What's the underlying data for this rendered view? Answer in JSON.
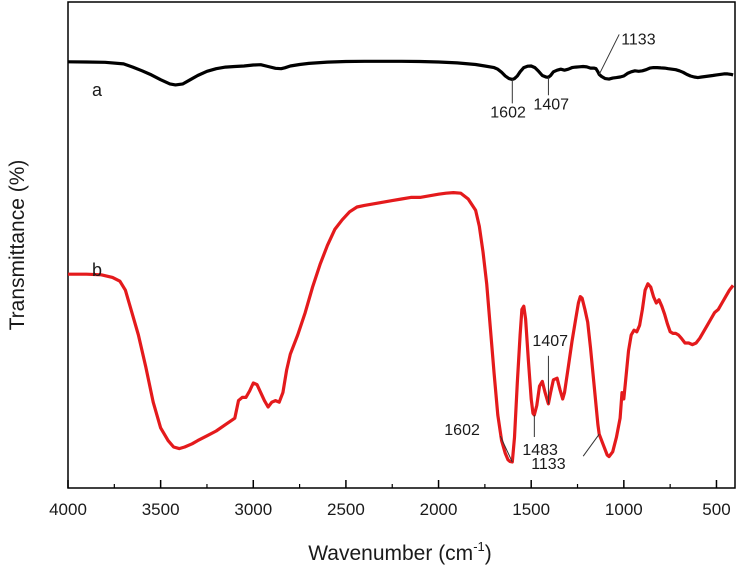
{
  "chart_data": {
    "type": "line",
    "xlabel": "Wavenumber (cm",
    "xlabel_sup": "-1",
    "xlabel_end": ")",
    "ylabel": "Transmittance (%)",
    "xlim": [
      4000,
      400
    ],
    "x_reversed": true,
    "x_ticks": [
      4000,
      3500,
      3000,
      2500,
      2000,
      1500,
      1000,
      500
    ],
    "y_ticks_labeled": false,
    "ylim": [
      0,
      100
    ],
    "grid": false,
    "series": [
      {
        "name": "a",
        "color": "#000000",
        "points": [
          [
            4000,
            93.5
          ],
          [
            3900,
            93.3
          ],
          [
            3800,
            93.0
          ],
          [
            3700,
            91.5
          ],
          [
            3650,
            88.5
          ],
          [
            3600,
            85.0
          ],
          [
            3550,
            81.0
          ],
          [
            3500,
            76.5
          ],
          [
            3450,
            72.5
          ],
          [
            3420,
            71.5
          ],
          [
            3380,
            72.5
          ],
          [
            3340,
            76.5
          ],
          [
            3300,
            80.5
          ],
          [
            3250,
            84.5
          ],
          [
            3200,
            87.0
          ],
          [
            3150,
            88.5
          ],
          [
            3100,
            89.0
          ],
          [
            3050,
            89.5
          ],
          [
            3000,
            90.5
          ],
          [
            2960,
            90.8
          ],
          [
            2920,
            89.0
          ],
          [
            2880,
            87.3
          ],
          [
            2850,
            87.0
          ],
          [
            2830,
            87.8
          ],
          [
            2800,
            89.5
          ],
          [
            2750,
            91.0
          ],
          [
            2700,
            92.0
          ],
          [
            2600,
            93.2
          ],
          [
            2500,
            93.8
          ],
          [
            2400,
            94.0
          ],
          [
            2300,
            94.0
          ],
          [
            2200,
            94.0
          ],
          [
            2100,
            93.8
          ],
          [
            2000,
            93.3
          ],
          [
            1900,
            92.5
          ],
          [
            1800,
            91.0
          ],
          [
            1750,
            89.5
          ],
          [
            1700,
            88.0
          ],
          [
            1680,
            86.5
          ],
          [
            1660,
            83.5
          ],
          [
            1640,
            80.0
          ],
          [
            1620,
            77.5
          ],
          [
            1602,
            76.8
          ],
          [
            1590,
            77.5
          ],
          [
            1575,
            80.0
          ],
          [
            1560,
            84.0
          ],
          [
            1540,
            88.0
          ],
          [
            1520,
            89.3
          ],
          [
            1500,
            89.5
          ],
          [
            1480,
            88.0
          ],
          [
            1460,
            84.5
          ],
          [
            1440,
            80.5
          ],
          [
            1420,
            79.0
          ],
          [
            1407,
            78.8
          ],
          [
            1395,
            80.5
          ],
          [
            1380,
            84.0
          ],
          [
            1360,
            85.5
          ],
          [
            1340,
            86.5
          ],
          [
            1320,
            85.5
          ],
          [
            1300,
            86.5
          ],
          [
            1280,
            88.0
          ],
          [
            1260,
            88.5
          ],
          [
            1240,
            88.8
          ],
          [
            1220,
            89.0
          ],
          [
            1200,
            88.7
          ],
          [
            1180,
            87.5
          ],
          [
            1160,
            87.5
          ],
          [
            1150,
            87.0
          ],
          [
            1140,
            84.0
          ],
          [
            1133,
            81.5
          ],
          [
            1120,
            79.5
          ],
          [
            1100,
            77.5
          ],
          [
            1080,
            77.0
          ],
          [
            1060,
            78.0
          ],
          [
            1040,
            78.5
          ],
          [
            1020,
            79.0
          ],
          [
            1000,
            80.0
          ],
          [
            980,
            82.5
          ],
          [
            960,
            84.0
          ],
          [
            940,
            85.0
          ],
          [
            920,
            84.5
          ],
          [
            900,
            85.0
          ],
          [
            880,
            86.0
          ],
          [
            860,
            87.5
          ],
          [
            840,
            88.0
          ],
          [
            820,
            88.0
          ],
          [
            800,
            87.7
          ],
          [
            780,
            87.5
          ],
          [
            760,
            87.0
          ],
          [
            740,
            86.5
          ],
          [
            720,
            86.0
          ],
          [
            700,
            85.0
          ],
          [
            680,
            83.5
          ],
          [
            660,
            81.5
          ],
          [
            640,
            80.0
          ],
          [
            620,
            79.0
          ],
          [
            600,
            78.5
          ],
          [
            580,
            79.0
          ],
          [
            560,
            79.5
          ],
          [
            540,
            80.0
          ],
          [
            520,
            80.5
          ],
          [
            500,
            81.0
          ],
          [
            480,
            81.5
          ],
          [
            460,
            82.0
          ],
          [
            440,
            82.0
          ],
          [
            420,
            81.5
          ],
          [
            410,
            81.0
          ]
        ]
      },
      {
        "name": "b",
        "color": "#e41a1c",
        "points": [
          [
            4000,
            59.0
          ],
          [
            3900,
            59.0
          ],
          [
            3820,
            58.8
          ],
          [
            3760,
            58.0
          ],
          [
            3720,
            56.8
          ],
          [
            3690,
            54.0
          ],
          [
            3660,
            48.0
          ],
          [
            3620,
            40.0
          ],
          [
            3580,
            30.0
          ],
          [
            3540,
            19.0
          ],
          [
            3500,
            11.0
          ],
          [
            3460,
            7.0
          ],
          [
            3430,
            5.0
          ],
          [
            3400,
            4.5
          ],
          [
            3370,
            5.0
          ],
          [
            3330,
            6.0
          ],
          [
            3300,
            7.0
          ],
          [
            3250,
            8.5
          ],
          [
            3200,
            10.0
          ],
          [
            3150,
            12.0
          ],
          [
            3100,
            14.0
          ],
          [
            3080,
            19.5
          ],
          [
            3060,
            20.5
          ],
          [
            3040,
            20.5
          ],
          [
            3020,
            22.5
          ],
          [
            3000,
            25.0
          ],
          [
            2980,
            24.5
          ],
          [
            2960,
            22.0
          ],
          [
            2940,
            19.5
          ],
          [
            2920,
            17.5
          ],
          [
            2900,
            19.0
          ],
          [
            2880,
            19.5
          ],
          [
            2860,
            19.0
          ],
          [
            2840,
            22.0
          ],
          [
            2820,
            29.0
          ],
          [
            2800,
            34.0
          ],
          [
            2760,
            40.0
          ],
          [
            2720,
            47.0
          ],
          [
            2680,
            55.0
          ],
          [
            2640,
            62.0
          ],
          [
            2600,
            68.0
          ],
          [
            2560,
            73.0
          ],
          [
            2520,
            76.0
          ],
          [
            2480,
            78.5
          ],
          [
            2440,
            80.0
          ],
          [
            2400,
            80.5
          ],
          [
            2350,
            81.0
          ],
          [
            2300,
            81.5
          ],
          [
            2250,
            82.0
          ],
          [
            2200,
            82.5
          ],
          [
            2150,
            83.0
          ],
          [
            2100,
            83.0
          ],
          [
            2050,
            83.5
          ],
          [
            2000,
            84.0
          ],
          [
            1960,
            84.3
          ],
          [
            1920,
            84.5
          ],
          [
            1880,
            84.3
          ],
          [
            1840,
            82.5
          ],
          [
            1800,
            79.0
          ],
          [
            1780,
            74.0
          ],
          [
            1760,
            66.0
          ],
          [
            1740,
            56.0
          ],
          [
            1720,
            42.0
          ],
          [
            1700,
            28.0
          ],
          [
            1680,
            15.0
          ],
          [
            1660,
            7.0
          ],
          [
            1640,
            3.0
          ],
          [
            1625,
            1.0
          ],
          [
            1615,
            0.5
          ],
          [
            1602,
            0.3
          ],
          [
            1590,
            8.0
          ],
          [
            1575,
            25.0
          ],
          [
            1560,
            40.0
          ],
          [
            1550,
            48.0
          ],
          [
            1540,
            49.0
          ],
          [
            1530,
            45.0
          ],
          [
            1515,
            32.0
          ],
          [
            1500,
            20.0
          ],
          [
            1490,
            15.5
          ],
          [
            1483,
            15.0
          ],
          [
            1470,
            18.0
          ],
          [
            1455,
            24.0
          ],
          [
            1440,
            25.5
          ],
          [
            1425,
            22.0
          ],
          [
            1410,
            19.0
          ],
          [
            1407,
            18.5
          ],
          [
            1395,
            22.0
          ],
          [
            1380,
            26.0
          ],
          [
            1360,
            26.5
          ],
          [
            1345,
            23.0
          ],
          [
            1330,
            20.0
          ],
          [
            1320,
            22.0
          ],
          [
            1300,
            30.0
          ],
          [
            1280,
            38.0
          ],
          [
            1260,
            45.0
          ],
          [
            1245,
            50.0
          ],
          [
            1235,
            52.0
          ],
          [
            1225,
            51.5
          ],
          [
            1210,
            48.0
          ],
          [
            1195,
            44.0
          ],
          [
            1180,
            36.0
          ],
          [
            1160,
            24.0
          ],
          [
            1140,
            12.0
          ],
          [
            1133,
            9.0
          ],
          [
            1110,
            5.5
          ],
          [
            1090,
            2.5
          ],
          [
            1080,
            2.0
          ],
          [
            1060,
            3.5
          ],
          [
            1040,
            8.0
          ],
          [
            1020,
            14.0
          ],
          [
            1010,
            22.0
          ],
          [
            1000,
            20.0
          ],
          [
            990,
            26.0
          ],
          [
            975,
            35.0
          ],
          [
            960,
            40.0
          ],
          [
            945,
            41.5
          ],
          [
            930,
            41.0
          ],
          [
            915,
            43.0
          ],
          [
            900,
            48.0
          ],
          [
            885,
            54.0
          ],
          [
            870,
            56.0
          ],
          [
            855,
            55.0
          ],
          [
            840,
            52.0
          ],
          [
            825,
            50.0
          ],
          [
            810,
            51.0
          ],
          [
            795,
            49.0
          ],
          [
            780,
            46.5
          ],
          [
            765,
            43.5
          ],
          [
            750,
            41.0
          ],
          [
            735,
            40.5
          ],
          [
            720,
            40.5
          ],
          [
            705,
            40.0
          ],
          [
            690,
            39.0
          ],
          [
            670,
            37.5
          ],
          [
            650,
            37.5
          ],
          [
            630,
            37.0
          ],
          [
            610,
            37.5
          ],
          [
            590,
            39.0
          ],
          [
            570,
            41.0
          ],
          [
            550,
            43.0
          ],
          [
            530,
            45.0
          ],
          [
            510,
            47.0
          ],
          [
            490,
            48.0
          ],
          [
            470,
            50.0
          ],
          [
            450,
            52.0
          ],
          [
            430,
            54.0
          ],
          [
            410,
            55.5
          ]
        ]
      }
    ],
    "curve_labels": [
      {
        "text": "a",
        "series": 0
      },
      {
        "text": "b",
        "series": 1
      }
    ],
    "annotations": [
      {
        "text": "1133",
        "series": 0,
        "x": 1133
      },
      {
        "text": "1602",
        "series": 0,
        "x": 1602
      },
      {
        "text": "1407",
        "series": 0,
        "x": 1407
      },
      {
        "text": "1407",
        "series": 1,
        "x": 1407
      },
      {
        "text": "1483",
        "series": 1,
        "x": 1483
      },
      {
        "text": "1602",
        "series": 1,
        "x": 1602
      },
      {
        "text": "1133",
        "series": 1,
        "x": 1133
      }
    ]
  }
}
